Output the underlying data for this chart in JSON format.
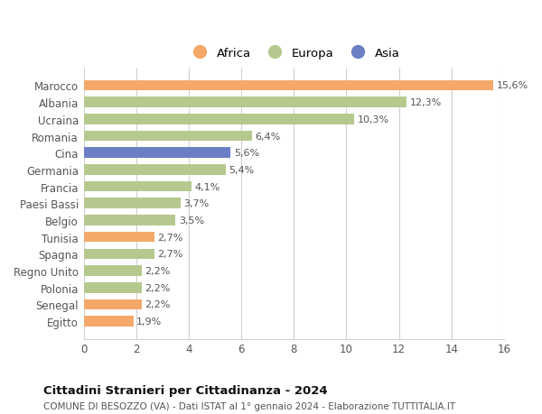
{
  "title": "Cittadini Stranieri per Cittadinanza - 2024",
  "subtitle": "COMUNE DI BESOZZO (VA) - Dati ISTAT al 1° gennaio 2024 - Elaborazione TUTTITALIA.IT",
  "categories": [
    "Marocco",
    "Albania",
    "Ucraina",
    "Romania",
    "Cina",
    "Germania",
    "Francia",
    "Paesi Bassi",
    "Belgio",
    "Tunisia",
    "Spagna",
    "Regno Unito",
    "Polonia",
    "Senegal",
    "Egitto"
  ],
  "values": [
    15.6,
    12.3,
    10.3,
    6.4,
    5.6,
    5.4,
    4.1,
    3.7,
    3.5,
    2.7,
    2.7,
    2.2,
    2.2,
    2.2,
    1.9
  ],
  "labels": [
    "15,6%",
    "12,3%",
    "10,3%",
    "6,4%",
    "5,6%",
    "5,4%",
    "4,1%",
    "3,7%",
    "3,5%",
    "2,7%",
    "2,7%",
    "2,2%",
    "2,2%",
    "2,2%",
    "1,9%"
  ],
  "continents": [
    "Africa",
    "Europa",
    "Europa",
    "Europa",
    "Asia",
    "Europa",
    "Europa",
    "Europa",
    "Europa",
    "Africa",
    "Europa",
    "Europa",
    "Europa",
    "Africa",
    "Africa"
  ],
  "colors": {
    "Africa": "#F4A96A",
    "Europa": "#B5C98E",
    "Asia": "#6B7FC4"
  },
  "legend_labels": [
    "Africa",
    "Europa",
    "Asia"
  ],
  "xlim": [
    0,
    16
  ],
  "xticks": [
    0,
    2,
    4,
    6,
    8,
    10,
    12,
    14,
    16
  ],
  "background_color": "#ffffff",
  "grid_color": "#d0d0d0",
  "bar_height": 0.62,
  "figsize": [
    6.0,
    4.6
  ],
  "dpi": 100
}
